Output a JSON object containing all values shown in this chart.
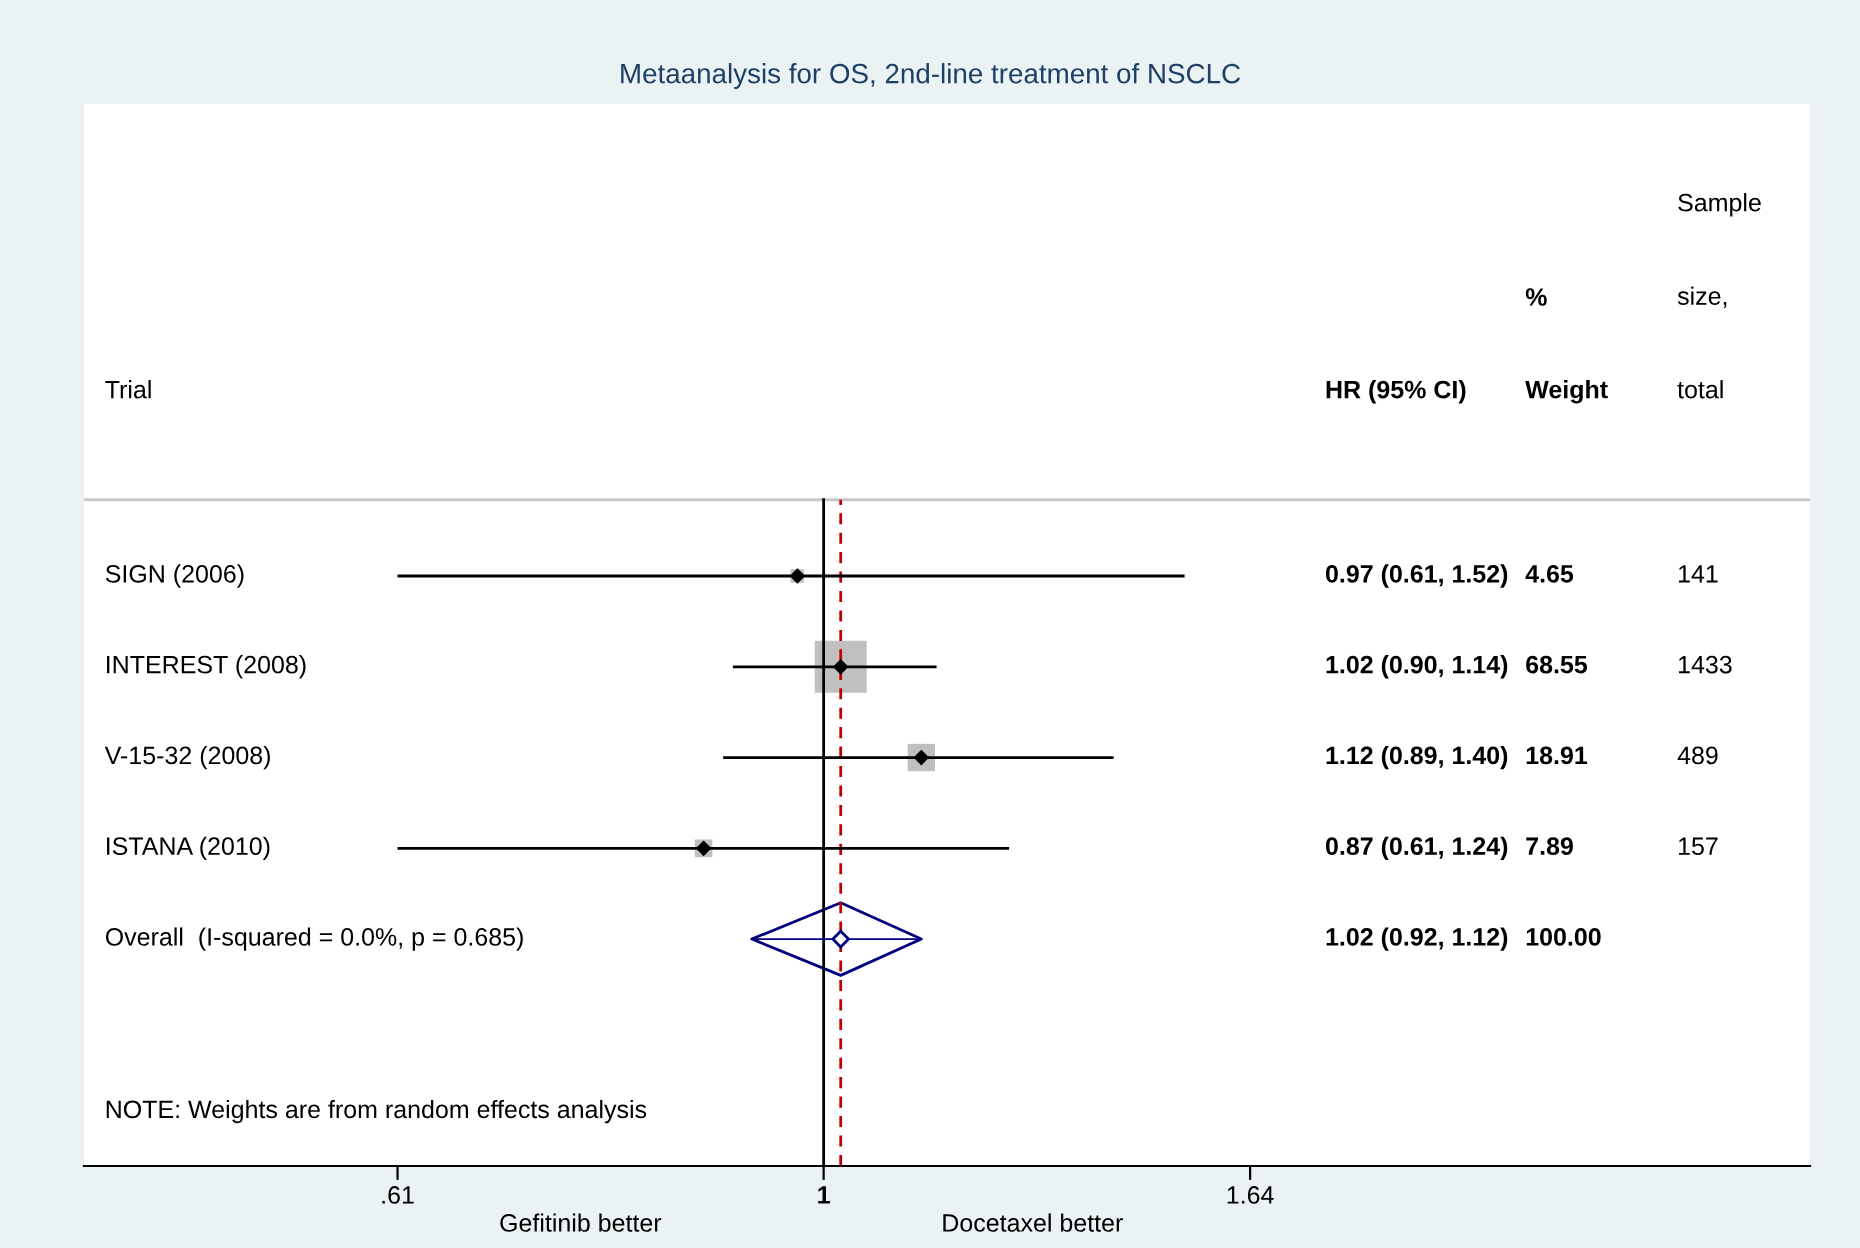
{
  "chart_data": {
    "type": "scatter",
    "orientation": "horizontal",
    "title": "Metaanalysis for OS, 2nd-line treatment of NSCLC",
    "categories": [
      "SIGN (2006)",
      "INTEREST (2008)",
      "V-15-32 (2008)",
      "ISTANA (2010)",
      "Overall  (I-squared = 0.0%, p = 0.685)"
    ],
    "series": [
      {
        "type": "bubble",
        "marker": "square",
        "color": "#c0c0c0",
        "values": [
          0.97,
          1.02,
          1.12,
          0.87,
          null
        ],
        "errors": [
          [
            0.61,
            1.52
          ],
          [
            0.9,
            1.14
          ],
          [
            0.89,
            1.4
          ],
          [
            0.61,
            1.24
          ],
          null
        ],
        "sizes": [
          0.068,
          1,
          0.276,
          0.115,
          null
        ]
      },
      {
        "marker": "diamond",
        "color": "#000080",
        "values": [
          null,
          null,
          null,
          null,
          1.02
        ],
        "errors": [
          null,
          null,
          null,
          null,
          [
            0.92,
            1.12
          ]
        ]
      }
    ],
    "log": "x",
    "xlim": [
      0.424,
      3.14
    ],
    "xticks": [
      {
        "value": 0.61,
        "label": ".61"
      },
      1,
      1.64
    ],
    "ref_lines": [
      {
        "axis": "x",
        "value": 1,
        "color": "#000000",
        "line_style": "solid"
      },
      {
        "axis": "x",
        "value": 1.02,
        "color": "#c00000",
        "line_style": "dashed"
      }
    ],
    "annotations": [
      "Trial",
      "HR (95% CI)",
      "%",
      "Weight",
      "Sample",
      "size,",
      "total",
      "0.97 (0.61, 1.52)",
      "1.02 (0.90, 1.14)",
      "1.12 (0.89, 1.40)",
      "0.87 (0.61, 1.24)",
      "1.02 (0.92, 1.12)",
      "4.65",
      "68.55",
      "18.91",
      "7.89",
      "100.00",
      "141",
      "1433",
      "489",
      "157",
      "NOTE: Weights are from random effects analysis",
      "Gefitinib better",
      "Docetaxel better"
    ],
    "grid": false
  }
}
